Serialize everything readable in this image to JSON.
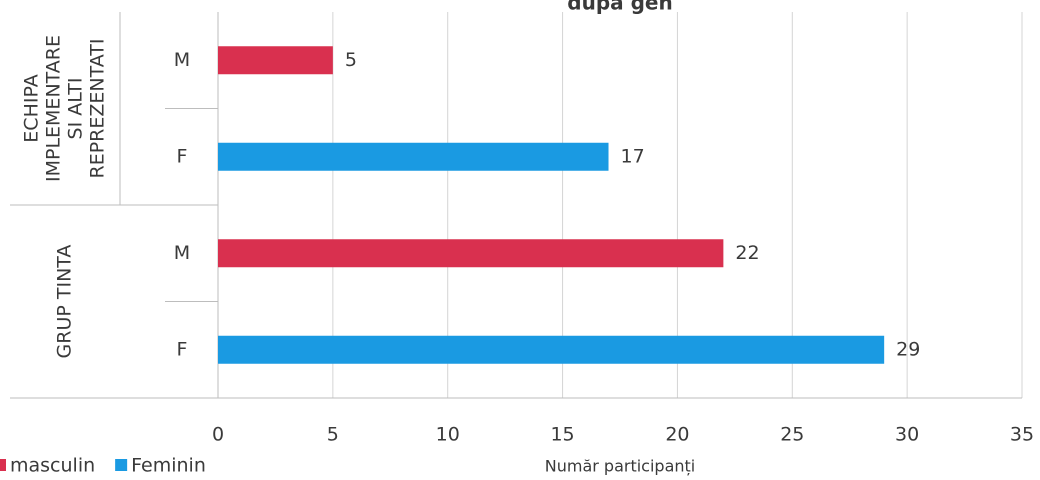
{
  "chart_data": {
    "type": "hbar",
    "title": "dupa gen",
    "x_label": "Număr participanți",
    "groups": [
      {
        "lines": [
          "ECHIPA",
          "IMPLEMENTARE",
          "SI ALTI",
          "REPREZENTATI"
        ]
      },
      {
        "lines": [
          "GRUP TINTA"
        ]
      }
    ],
    "categories": [
      "M",
      "F",
      "M",
      "F"
    ],
    "category_group": [
      0,
      0,
      1,
      1
    ],
    "series": [
      {
        "name": "masculin",
        "color": "#d9304f",
        "values": [
          5,
          null,
          22,
          null
        ]
      },
      {
        "name": "Feminin",
        "color": "#1a9ae2",
        "values": [
          null,
          17,
          null,
          29
        ]
      }
    ],
    "xlim": [
      0,
      35
    ],
    "xticks": [
      0,
      5,
      10,
      15,
      20,
      25,
      30,
      35
    ],
    "grid": true
  }
}
